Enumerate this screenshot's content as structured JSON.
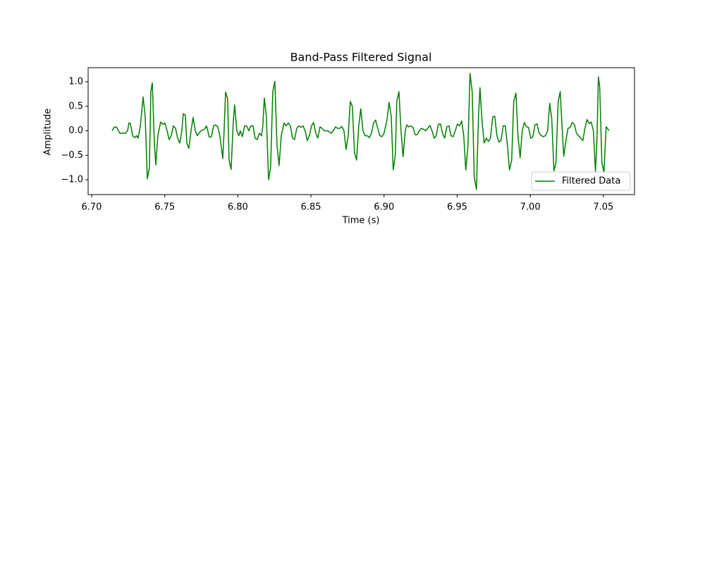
{
  "chart_data": {
    "type": "line",
    "title": "Band-Pass Filtered Signal",
    "x_label": "Time (s)",
    "y_label": "Amplitude",
    "x": [
      6.714,
      6.7154,
      6.7169,
      6.7193,
      6.7231,
      6.7246,
      6.7255,
      6.7265,
      6.728,
      6.7294,
      6.7308,
      6.7318,
      6.7333,
      6.7352,
      6.7366,
      6.7381,
      6.7395,
      6.7405,
      6.7415,
      6.7429,
      6.7439,
      6.7453,
      6.7472,
      6.7487,
      6.7501,
      6.7516,
      6.753,
      6.7545,
      6.7559,
      6.7574,
      6.7588,
      6.7603,
      6.7617,
      6.7627,
      6.7641,
      6.7651,
      6.7665,
      6.768,
      6.7694,
      6.7709,
      6.7723,
      6.7747,
      6.7771,
      6.7786,
      6.7805,
      6.7819,
      6.7834,
      6.7848,
      6.7863,
      6.7877,
      6.7897,
      6.7906,
      6.7916,
      6.793,
      6.794,
      6.7954,
      6.7969,
      6.7978,
      6.7993,
      6.8007,
      6.8017,
      6.8031,
      6.8046,
      6.806,
      6.8075,
      6.8089,
      6.8104,
      6.8118,
      6.8133,
      6.8147,
      6.8162,
      6.8171,
      6.8181,
      6.8195,
      6.821,
      6.8224,
      6.8239,
      6.8253,
      6.8268,
      6.8282,
      6.8297,
      6.8316,
      6.833,
      6.8345,
      6.8359,
      6.8374,
      6.8388,
      6.8403,
      6.8417,
      6.8432,
      6.8446,
      6.846,
      6.8475,
      6.8489,
      6.8504,
      6.8518,
      6.8533,
      6.8547,
      6.8562,
      6.8576,
      6.8591,
      6.8615,
      6.8639,
      6.8653,
      6.8668,
      6.8682,
      6.8697,
      6.8711,
      6.8726,
      6.874,
      6.8755,
      6.8769,
      6.8783,
      6.8798,
      6.8812,
      6.8827,
      6.8841,
      6.8856,
      6.887,
      6.8885,
      6.8899,
      6.8914,
      6.8928,
      6.8942,
      6.8957,
      6.8971,
      6.8986,
      6.9,
      6.902,
      6.9034,
      6.9049,
      6.9063,
      6.9077,
      6.9087,
      6.9102,
      6.9116,
      6.913,
      6.9145,
      6.9155,
      6.9169,
      6.9183,
      6.9198,
      6.9212,
      6.9227,
      6.9241,
      6.9256,
      6.927,
      6.9285,
      6.9299,
      6.9314,
      6.9328,
      6.9343,
      6.9357,
      6.9371,
      6.9386,
      6.94,
      6.9415,
      6.9429,
      6.9444,
      6.9458,
      6.9473,
      6.9487,
      6.9502,
      6.9516,
      6.9531,
      6.9545,
      6.9559,
      6.9574,
      6.9588,
      6.9603,
      6.9617,
      6.9632,
      6.9646,
      6.9656,
      6.967,
      6.9685,
      6.9699,
      6.9714,
      6.9728,
      6.9743,
      6.9757,
      6.9772,
      6.9786,
      6.98,
      6.9815,
      6.9829,
      6.9844,
      6.9858,
      6.9873,
      6.9887,
      6.9902,
      6.9916,
      6.9931,
      6.9945,
      6.996,
      6.9974,
      6.9988,
      7.0003,
      7.0017,
      7.0032,
      7.0046,
      7.0061,
      7.0075,
      7.009,
      7.0104,
      7.0119,
      7.0133,
      7.0147,
      7.0162,
      7.0176,
      7.0191,
      7.0205,
      7.022,
      7.0229,
      7.0244,
      7.0258,
      7.0273,
      7.0287,
      7.0302,
      7.0316,
      7.0331,
      7.0345,
      7.036,
      7.0374,
      7.0388,
      7.0403,
      7.0417,
      7.0432,
      7.0446,
      7.0456,
      7.0466,
      7.0475,
      7.049,
      7.0504,
      7.0519,
      7.0528,
      7.0538
    ],
    "series": [
      {
        "name": "Filtered Data",
        "color": "#008000",
        "values": [
          0.0,
          0.07,
          0.08,
          -0.05,
          -0.05,
          0.0,
          0.16,
          0.15,
          -0.1,
          -0.14,
          -0.1,
          -0.15,
          0.1,
          0.69,
          0.3,
          -0.98,
          -0.75,
          0.8,
          0.98,
          -0.25,
          -0.7,
          -0.1,
          0.18,
          0.13,
          0.16,
          0.0,
          -0.18,
          -0.1,
          0.1,
          0.05,
          -0.15,
          -0.25,
          0.0,
          0.35,
          0.32,
          -0.25,
          -0.36,
          0.0,
          0.27,
          0.0,
          -0.1,
          0.0,
          0.03,
          0.1,
          -0.13,
          -0.12,
          0.1,
          0.12,
          0.08,
          -0.1,
          -0.57,
          0.0,
          0.79,
          0.65,
          -0.6,
          -0.79,
          0.2,
          0.53,
          0.0,
          -0.1,
          0.0,
          -0.12,
          0.1,
          0.1,
          0.0,
          0.1,
          0.1,
          -0.15,
          -0.18,
          -0.05,
          -0.1,
          0.1,
          0.67,
          0.3,
          -1.0,
          -0.75,
          0.8,
          1.01,
          -0.3,
          -0.71,
          -0.1,
          0.16,
          0.1,
          0.16,
          0.1,
          -0.15,
          -0.18,
          0.05,
          0.1,
          0.07,
          0.1,
          0.0,
          -0.2,
          -0.1,
          0.1,
          0.17,
          -0.05,
          -0.15,
          0.08,
          0.05,
          0.0,
          0.0,
          -0.05,
          0.0,
          0.08,
          0.05,
          0.05,
          0.09,
          0.0,
          -0.38,
          -0.1,
          0.6,
          0.5,
          -0.45,
          -0.6,
          0.1,
          0.45,
          0.0,
          -0.1,
          -0.1,
          -0.14,
          -0.05,
          0.15,
          0.22,
          0.05,
          -0.1,
          -0.12,
          -0.05,
          0.22,
          0.58,
          0.3,
          -0.8,
          -0.5,
          0.6,
          0.8,
          0.0,
          -0.53,
          0.0,
          0.12,
          0.08,
          0.1,
          0.07,
          -0.08,
          -0.08,
          0.0,
          0.05,
          0.03,
          0.0,
          0.05,
          0.11,
          0.0,
          -0.15,
          -0.1,
          0.13,
          0.14,
          -0.05,
          -0.15,
          0.08,
          0.1,
          -0.1,
          -0.12,
          0.0,
          0.14,
          0.1,
          0.2,
          -0.1,
          -0.8,
          -0.3,
          1.17,
          0.8,
          -0.95,
          -1.2,
          0.3,
          0.88,
          0.2,
          -0.25,
          -0.15,
          -0.22,
          -0.15,
          0.28,
          0.3,
          -0.1,
          -0.23,
          -0.2,
          0.1,
          0.1,
          -0.3,
          -0.8,
          -0.6,
          0.6,
          0.77,
          -0.1,
          -0.55,
          0.0,
          0.17,
          0.08,
          0.07,
          -0.15,
          -0.13,
          0.12,
          0.14,
          -0.05,
          -0.1,
          -0.12,
          -0.1,
          0.0,
          0.56,
          0.25,
          -0.82,
          -0.65,
          0.6,
          0.8,
          -0.05,
          -0.52,
          -0.2,
          0.05,
          0.07,
          0.17,
          0.13,
          -0.05,
          -0.1,
          -0.15,
          -0.2,
          0.05,
          0.23,
          0.15,
          0.18,
          0.0,
          -0.83,
          -0.2,
          1.1,
          0.9,
          -0.65,
          -0.85,
          0.08,
          0.05,
          0.0
        ]
      }
    ],
    "xlim": [
      6.6976,
      7.0713
    ],
    "ylim": [
      -1.302,
      1.288
    ],
    "xticks": [
      {
        "value": 6.7,
        "label": "6.70"
      },
      6.75,
      {
        "value": 6.8,
        "label": "6.80"
      },
      6.85,
      {
        "value": 6.9,
        "label": "6.90"
      },
      6.95,
      {
        "value": 7.0,
        "label": "7.00"
      },
      7.05
    ],
    "yticks": [
      {
        "value": -1.0,
        "label": "−1.0"
      },
      {
        "value": -0.5,
        "label": "−0.5"
      },
      {
        "value": 0.0,
        "label": "0.0"
      },
      0.5,
      {
        "value": 1.0,
        "label": "1.0"
      }
    ],
    "grid": false,
    "legend": "lower right"
  }
}
